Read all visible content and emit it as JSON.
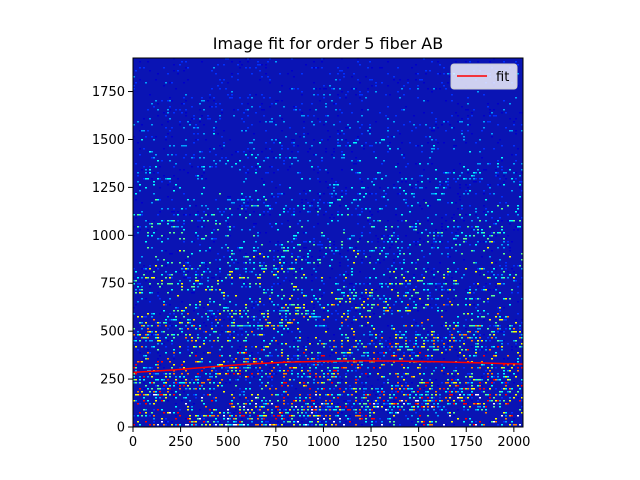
{
  "chart_data": {
    "type": "heatmap",
    "title": "Image fit for order 5 fiber AB",
    "xlabel": "",
    "ylabel": "",
    "xlim": [
      0,
      2048
    ],
    "ylim": [
      0,
      1925
    ],
    "xticks": [
      0,
      250,
      500,
      750,
      1000,
      1250,
      1500,
      1750,
      2000
    ],
    "yticks": [
      0,
      250,
      500,
      750,
      1000,
      1250,
      1500,
      1750
    ],
    "colormap": "jet",
    "background_color": "#0a14b4",
    "grid": false,
    "legend": {
      "placement": "top-right",
      "entries": [
        {
          "label": "fit",
          "color": "#ff0000"
        }
      ]
    },
    "series": [
      {
        "name": "fit",
        "type": "line",
        "color": "#ff0000",
        "x": [
          0,
          200,
          400,
          600,
          800,
          1000,
          1200,
          1400,
          1600,
          1800,
          2048
        ],
        "y": [
          285,
          297,
          313,
          328,
          338,
          343,
          345,
          344,
          340,
          335,
          328
        ]
      }
    ]
  }
}
